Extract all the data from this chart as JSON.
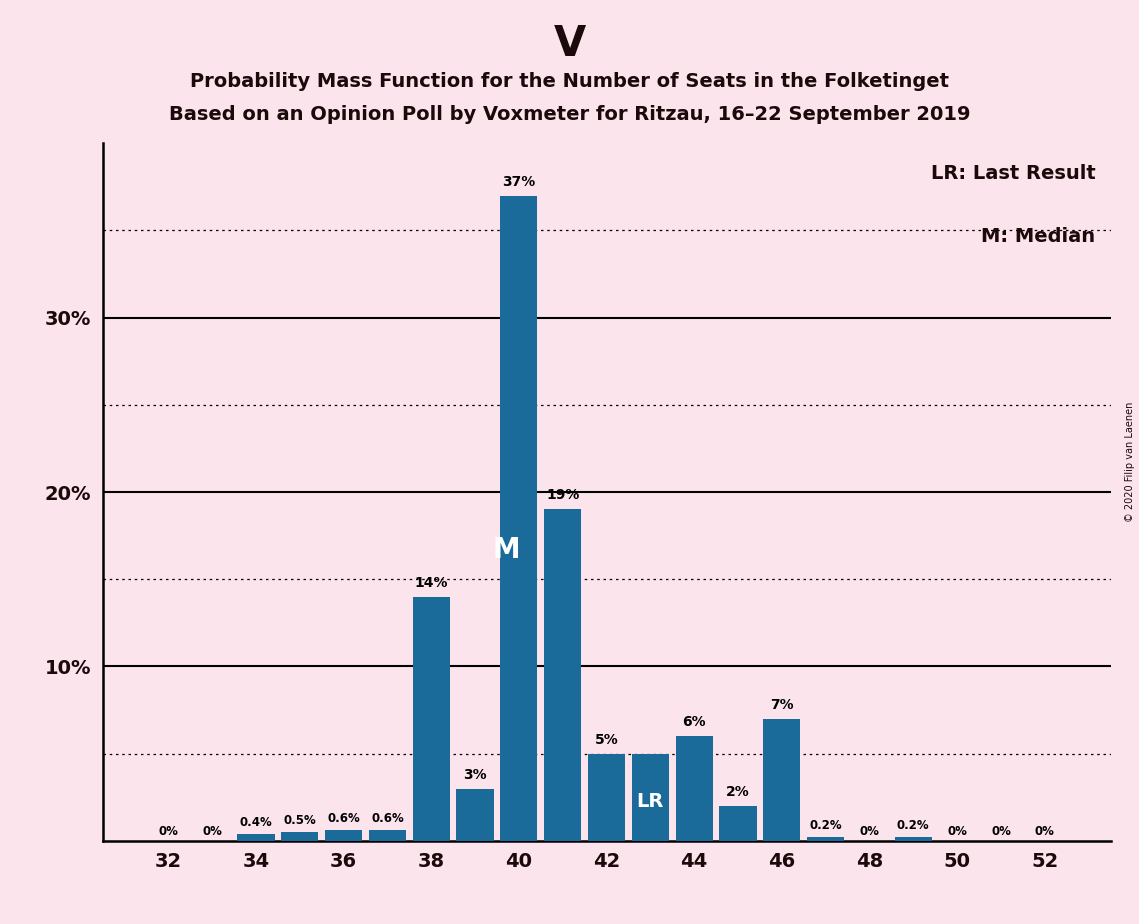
{
  "title_main": "V",
  "title_line1": "Probability Mass Function for the Number of Seats in the Folketinget",
  "title_line2": "Based on an Opinion Poll by Voxmeter for Ritzau, 16–22 September 2019",
  "copyright": "© 2020 Filip van Laenen",
  "legend_lr": "LR: Last Result",
  "legend_m": "M: Median",
  "background_color": "#fce4ec",
  "bar_color": "#1a6b9a",
  "seats": [
    32,
    33,
    34,
    35,
    36,
    37,
    38,
    39,
    40,
    41,
    42,
    43,
    44,
    45,
    46,
    47,
    48,
    49,
    50,
    51,
    52
  ],
  "values": [
    0.0,
    0.0,
    0.4,
    0.5,
    0.6,
    0.6,
    14.0,
    3.0,
    37.0,
    19.0,
    5.0,
    5.0,
    6.0,
    2.0,
    7.0,
    0.2,
    0.0,
    0.2,
    0.0,
    0.0,
    0.0
  ],
  "labels": [
    "0%",
    "0%",
    "0.4%",
    "0.5%",
    "0.6%",
    "0.6%",
    "14%",
    "3%",
    "37%",
    "19%",
    "5%",
    "5%",
    "6%",
    "2%",
    "7%",
    "0.2%",
    "0%",
    "0.2%",
    "0%",
    "0%",
    "0%"
  ],
  "show_label": [
    true,
    true,
    true,
    true,
    true,
    true,
    true,
    true,
    true,
    true,
    true,
    false,
    true,
    true,
    true,
    true,
    true,
    true,
    true,
    true,
    true
  ],
  "median_seat": 40,
  "lr_seat": 43,
  "dotted_yticks": [
    5,
    15,
    25,
    35
  ],
  "solid_yticks": [
    10,
    20,
    30
  ],
  "ytick_labels": [
    [
      10,
      "10%"
    ],
    [
      20,
      "20%"
    ],
    [
      30,
      "30%"
    ]
  ],
  "xticks": [
    32,
    34,
    36,
    38,
    40,
    42,
    44,
    46,
    48,
    50,
    52
  ],
  "xlim": [
    30.5,
    53.5
  ],
  "ylim": [
    0,
    40
  ]
}
